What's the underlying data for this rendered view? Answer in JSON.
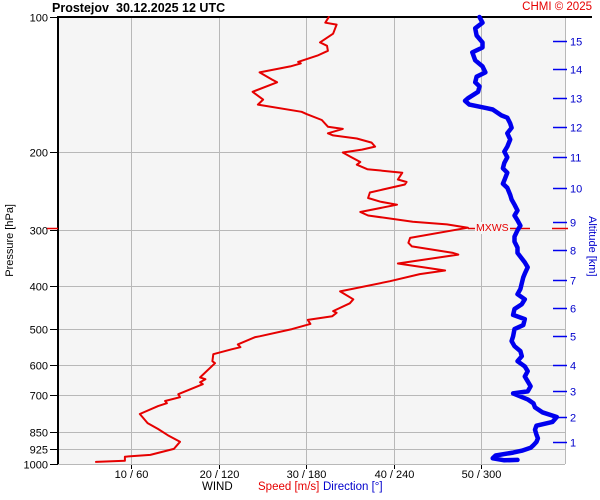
{
  "header": {
    "station": "Prostejov",
    "datetime": "30.12.2025 12 UTC",
    "copyright": "CHMI © 2025"
  },
  "colors": {
    "red": "#e60000",
    "blue_curve": "#0000ee",
    "blue_text": "#0000cc",
    "grid": "#b8b8b8",
    "axis": "#000000",
    "plot_bg": "#f5f5f5"
  },
  "chart_data": {
    "type": "line",
    "title": "Prostejov 30.12.2025 12 UTC — vertical wind profile",
    "ylabel_left": "Pressure [hPa]",
    "ylabel_right": "Altitude [km]",
    "y_scale": "log",
    "pressure_range_hpa": [
      100,
      1000
    ],
    "x_axis": {
      "speed_ticks_ms": [
        10,
        20,
        30,
        40,
        50
      ],
      "direction_ticks_deg": [
        60,
        120,
        180,
        240,
        300
      ]
    },
    "legend": {
      "wind": "WIND",
      "speed": "Speed [m/s]",
      "direction": "Direction [°]"
    },
    "grid": true,
    "pressure_ticks": [
      {
        "label": "100",
        "hpa": 100
      },
      {
        "label": "200",
        "hpa": 200
      },
      {
        "label": "300",
        "hpa": 300
      },
      {
        "label": "400",
        "hpa": 400
      },
      {
        "label": "500",
        "hpa": 500
      },
      {
        "label": "600",
        "hpa": 600
      },
      {
        "label": "700",
        "hpa": 700
      },
      {
        "label": "850",
        "hpa": 850
      },
      {
        "label": "925",
        "hpa": 925
      },
      {
        "label": "1000",
        "hpa": 1000
      }
    ],
    "x_ticks": [
      {
        "label": "10 / 60",
        "speed": 10,
        "dir": 60
      },
      {
        "label": "20 / 120",
        "speed": 20,
        "dir": 120
      },
      {
        "label": "30 / 180",
        "speed": 30,
        "dir": 180
      },
      {
        "label": "40 / 240",
        "speed": 40,
        "dir": 240
      },
      {
        "label": "50 / 300",
        "speed": 50,
        "dir": 300
      }
    ],
    "altitude_ticks": [
      {
        "label": "15",
        "km": 15,
        "hpa": 113
      },
      {
        "label": "14",
        "km": 14,
        "hpa": 131
      },
      {
        "label": "13",
        "km": 13,
        "hpa": 152
      },
      {
        "label": "12",
        "km": 12,
        "hpa": 176
      },
      {
        "label": "11",
        "km": 11,
        "hpa": 206
      },
      {
        "label": "10",
        "km": 10,
        "hpa": 241
      },
      {
        "label": "9",
        "km": 9,
        "hpa": 288
      },
      {
        "label": "8",
        "km": 8,
        "hpa": 332
      },
      {
        "label": "7",
        "km": 7,
        "hpa": 387
      },
      {
        "label": "6",
        "km": 6,
        "hpa": 447
      },
      {
        "label": "5",
        "km": 5,
        "hpa": 518
      },
      {
        "label": "4",
        "km": 4,
        "hpa": 599
      },
      {
        "label": "3",
        "km": 3,
        "hpa": 688
      },
      {
        "label": "2",
        "km": 2,
        "hpa": 785
      },
      {
        "label": "1",
        "km": 1,
        "hpa": 892
      }
    ],
    "mxws": {
      "label": "MXWS",
      "hpa": 296,
      "speed": 48.5
    },
    "series": [
      {
        "name": "Speed [m/s]",
        "color": "#e60000",
        "x_units": "m/s",
        "y_units": "hPa",
        "points": [
          [
            32.6,
            100
          ],
          [
            32.2,
            103
          ],
          [
            33.5,
            104
          ],
          [
            33.1,
            109
          ],
          [
            31.6,
            114
          ],
          [
            32.4,
            116
          ],
          [
            32.5,
            119
          ],
          [
            31.3,
            122
          ],
          [
            29.1,
            126
          ],
          [
            29.4,
            127
          ],
          [
            28.2,
            129
          ],
          [
            24.7,
            133
          ],
          [
            26.1,
            138
          ],
          [
            26.7,
            140
          ],
          [
            23.9,
            147
          ],
          [
            25.1,
            153
          ],
          [
            24.5,
            157
          ],
          [
            29.5,
            163
          ],
          [
            30.1,
            165
          ],
          [
            31.8,
            170
          ],
          [
            32.5,
            176
          ],
          [
            34.2,
            178
          ],
          [
            32.5,
            182
          ],
          [
            33.1,
            184
          ],
          [
            35.8,
            187
          ],
          [
            37.5,
            191
          ],
          [
            37.9,
            195
          ],
          [
            36.4,
            198
          ],
          [
            34.2,
            201
          ],
          [
            35.0,
            205
          ],
          [
            36.2,
            211
          ],
          [
            35.8,
            214
          ],
          [
            37.0,
            219
          ],
          [
            41.0,
            223
          ],
          [
            40.5,
            231
          ],
          [
            41.5,
            234
          ],
          [
            41.3,
            237
          ],
          [
            37.3,
            247
          ],
          [
            37.1,
            254
          ],
          [
            38.5,
            259
          ],
          [
            40.4,
            263
          ],
          [
            36.2,
            273
          ],
          [
            37.1,
            278
          ],
          [
            42.2,
            287
          ],
          [
            46.1,
            291
          ],
          [
            48.5,
            296
          ],
          [
            41.9,
            312
          ],
          [
            41.7,
            320
          ],
          [
            42.1,
            326
          ],
          [
            46.8,
            337
          ],
          [
            47.4,
            340
          ],
          [
            40.5,
            356
          ],
          [
            45.9,
            369
          ],
          [
            43.0,
            376
          ],
          [
            39.6,
            390
          ],
          [
            33.9,
            411
          ],
          [
            35.4,
            428
          ],
          [
            35.0,
            437
          ],
          [
            33.1,
            455
          ],
          [
            33.5,
            459
          ],
          [
            33.0,
            467
          ],
          [
            30.2,
            476
          ],
          [
            30.5,
            486
          ],
          [
            28.4,
            499
          ],
          [
            24.7,
            518
          ],
          [
            24.2,
            520
          ],
          [
            22.2,
            540
          ],
          [
            22.5,
            548
          ],
          [
            21.5,
            554
          ],
          [
            19.4,
            568
          ],
          [
            19.3,
            589
          ],
          [
            19.6,
            595
          ],
          [
            17.9,
            640
          ],
          [
            18.5,
            646
          ],
          [
            17.9,
            656
          ],
          [
            18.2,
            663
          ],
          [
            15.4,
            698
          ],
          [
            15.6,
            709
          ],
          [
            13.9,
            723
          ],
          [
            14.1,
            731
          ],
          [
            13.1,
            742
          ],
          [
            11.0,
            773
          ],
          [
            11.3,
            785
          ],
          [
            11.9,
            810
          ],
          [
            13.1,
            835
          ],
          [
            14.2,
            862
          ],
          [
            15.6,
            892
          ],
          [
            14.9,
            925
          ],
          [
            12.2,
            954
          ],
          [
            9.3,
            963
          ],
          [
            9.3,
            983
          ],
          [
            6.0,
            989
          ]
        ]
      },
      {
        "name": "Direction [°]",
        "color": "#0000ee",
        "x_units": "deg",
        "y_units": "hPa",
        "points": [
          [
            299,
            100
          ],
          [
            301,
            103
          ],
          [
            296,
            106
          ],
          [
            297,
            110
          ],
          [
            301,
            114
          ],
          [
            301,
            117
          ],
          [
            294,
            120
          ],
          [
            296,
            125
          ],
          [
            301,
            129
          ],
          [
            303,
            133
          ],
          [
            297,
            136
          ],
          [
            296,
            140
          ],
          [
            299,
            143
          ],
          [
            298,
            147
          ],
          [
            291,
            152
          ],
          [
            289,
            154
          ],
          [
            292,
            157
          ],
          [
            304,
            160
          ],
          [
            308,
            161
          ],
          [
            314,
            166
          ],
          [
            318,
            168
          ],
          [
            320,
            173
          ],
          [
            321,
            177
          ],
          [
            318,
            182
          ],
          [
            320,
            188
          ],
          [
            318,
            195
          ],
          [
            316,
            200
          ],
          [
            318,
            206
          ],
          [
            316,
            212
          ],
          [
            315,
            218
          ],
          [
            318,
            223
          ],
          [
            316,
            232
          ],
          [
            315,
            236
          ],
          [
            318,
            241
          ],
          [
            320,
            250
          ],
          [
            321,
            256
          ],
          [
            323,
            263
          ],
          [
            325,
            271
          ],
          [
            323,
            278
          ],
          [
            325,
            285
          ],
          [
            327,
            293
          ],
          [
            325,
            300
          ],
          [
            323,
            310
          ],
          [
            323,
            318
          ],
          [
            325,
            328
          ],
          [
            325,
            337
          ],
          [
            330,
            354
          ],
          [
            332,
            363
          ],
          [
            330,
            375
          ],
          [
            329,
            382
          ],
          [
            328,
            394
          ],
          [
            327,
            406
          ],
          [
            325,
            417
          ],
          [
            330,
            428
          ],
          [
            328,
            439
          ],
          [
            323,
            450
          ],
          [
            322,
            464
          ],
          [
            330,
            474
          ],
          [
            329,
            489
          ],
          [
            323,
            499
          ],
          [
            322,
            518
          ],
          [
            321,
            531
          ],
          [
            323,
            545
          ],
          [
            327,
            559
          ],
          [
            328,
            574
          ],
          [
            325,
            589
          ],
          [
            330,
            605
          ],
          [
            332,
            620
          ],
          [
            330,
            637
          ],
          [
            332,
            653
          ],
          [
            334,
            670
          ],
          [
            332,
            688
          ],
          [
            322,
            695
          ],
          [
            332,
            717
          ],
          [
            336,
            732
          ],
          [
            337,
            747
          ],
          [
            342,
            766
          ],
          [
            352,
            785
          ],
          [
            349,
            805
          ],
          [
            338,
            821
          ],
          [
            337,
            838
          ],
          [
            338,
            859
          ],
          [
            339,
            876
          ],
          [
            338,
            893
          ],
          [
            336,
            907
          ],
          [
            334,
            920
          ],
          [
            328,
            934
          ],
          [
            322,
            943
          ],
          [
            310,
            957
          ],
          [
            308,
            971
          ],
          [
            316,
            981
          ],
          [
            325,
            979
          ]
        ]
      }
    ]
  }
}
